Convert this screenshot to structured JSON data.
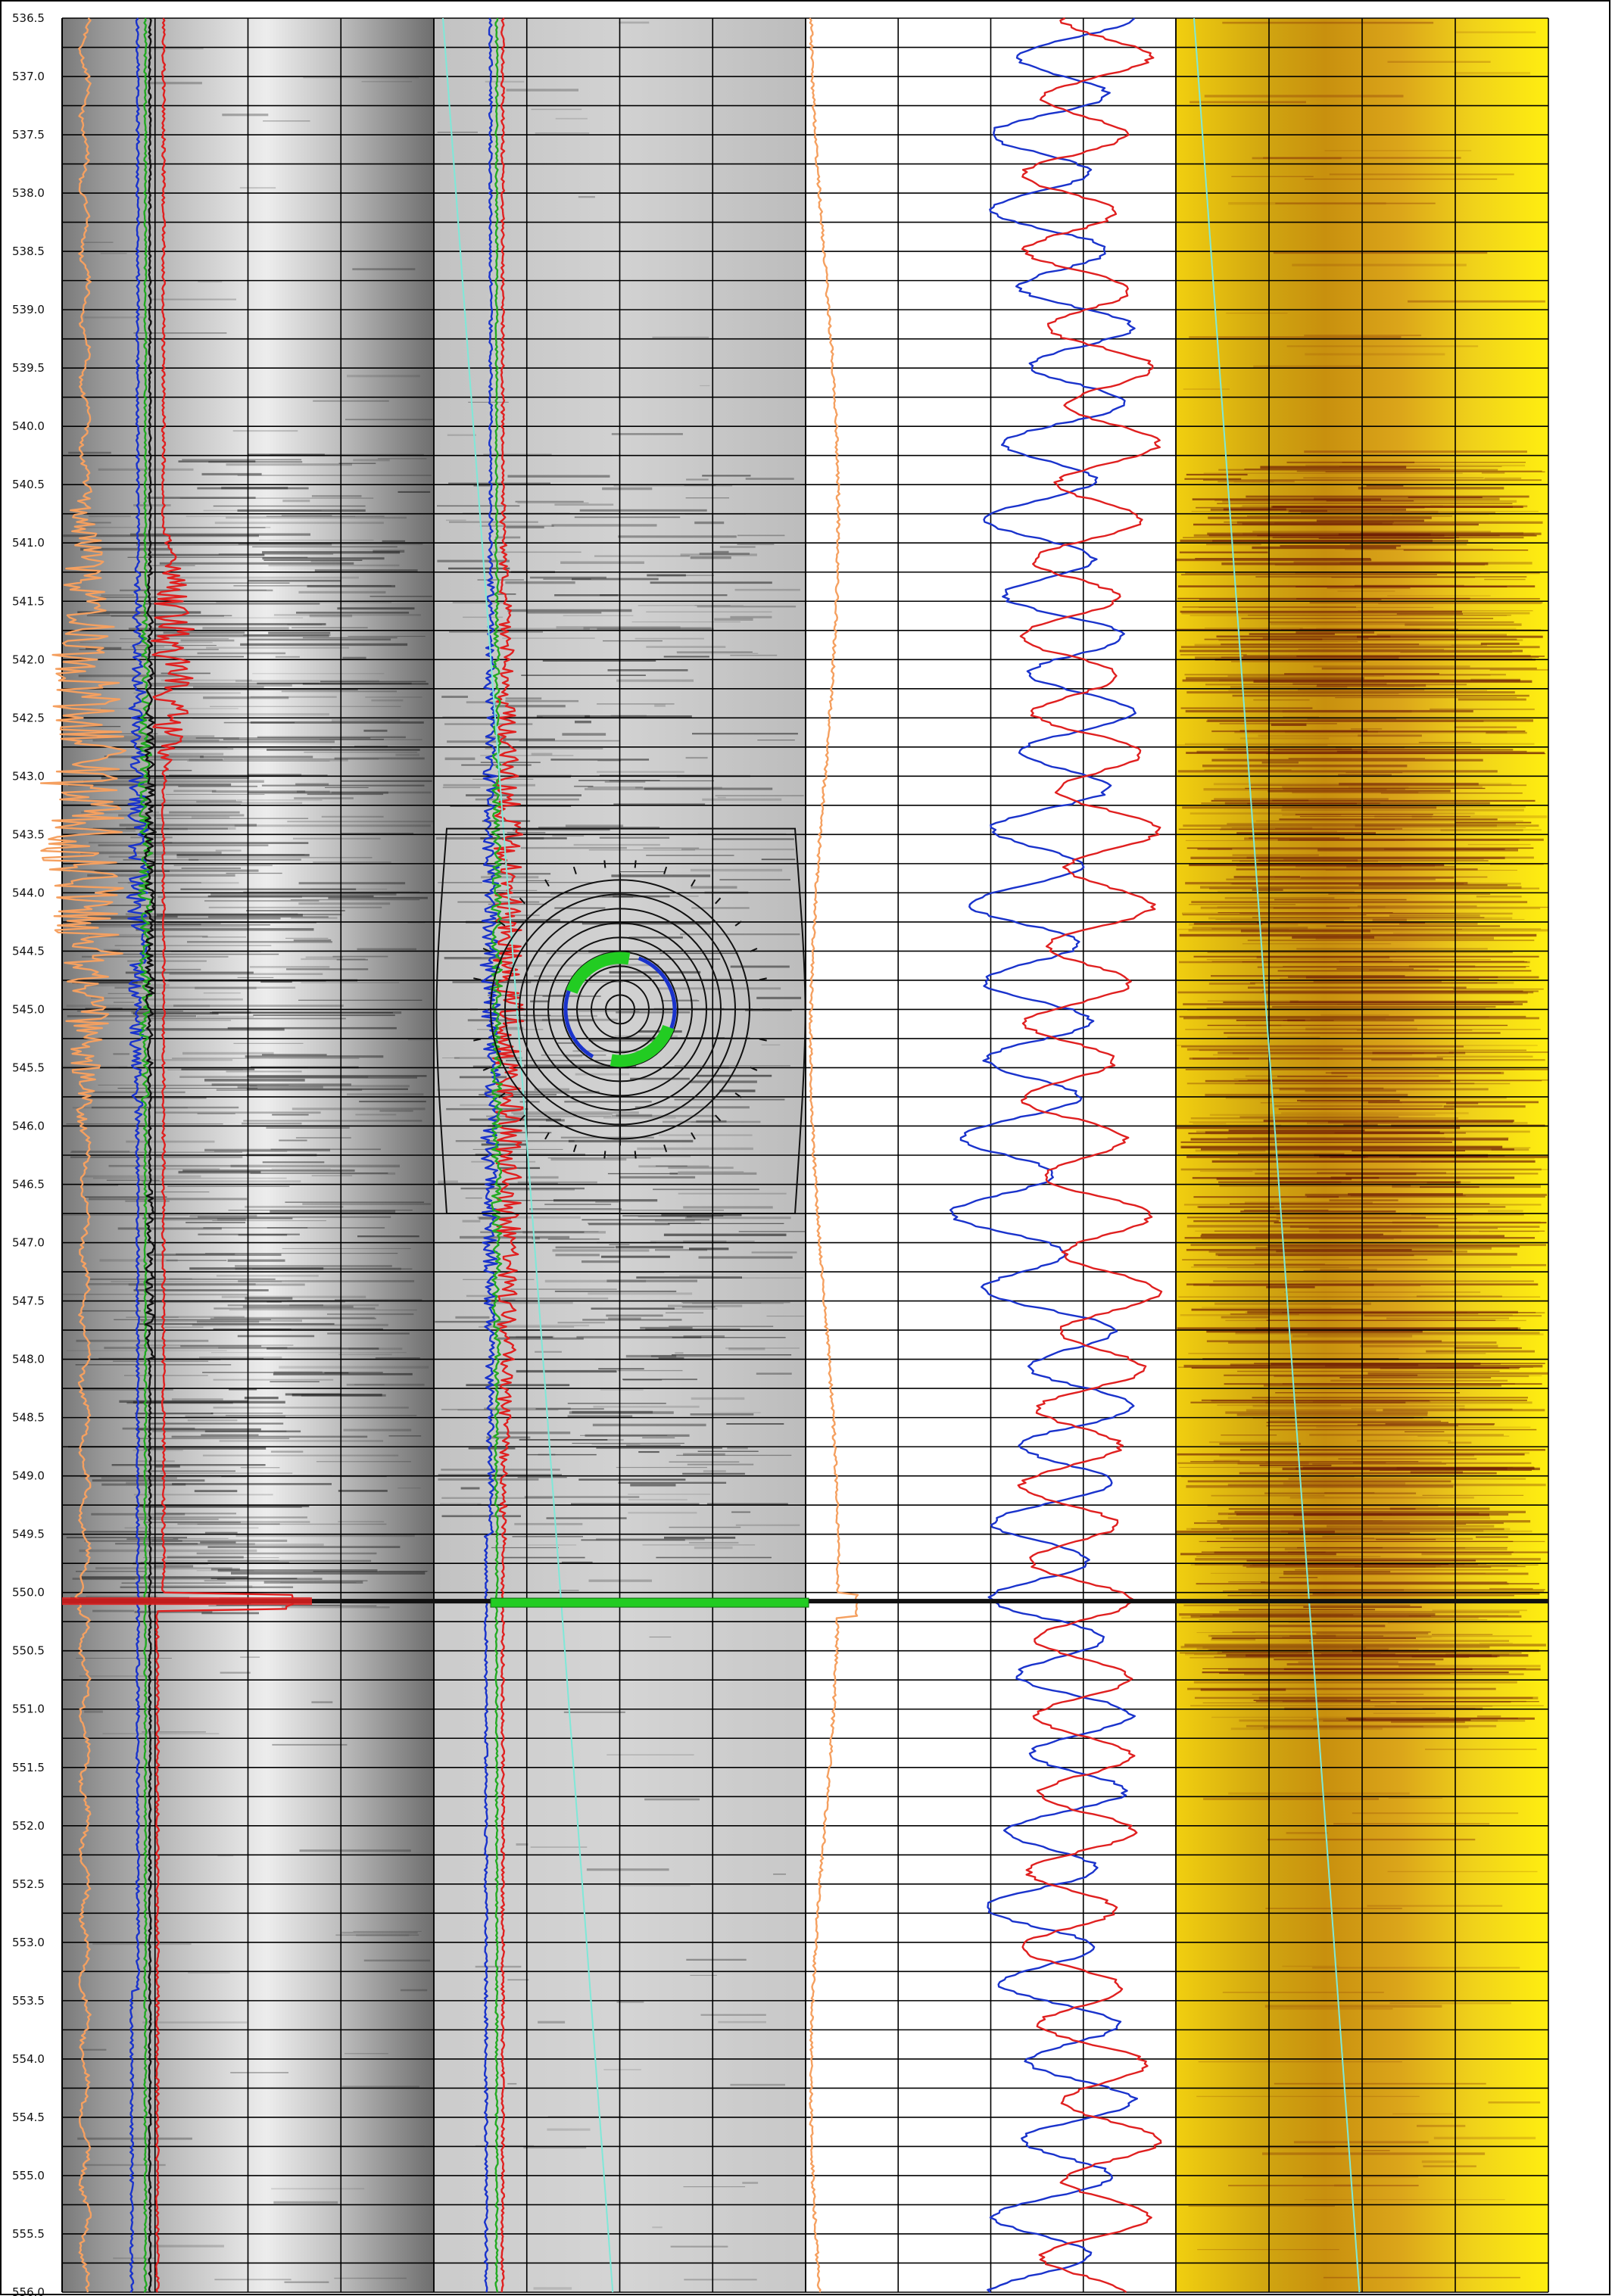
{
  "chart_data": {
    "type": "line",
    "title": "",
    "xlabel": "",
    "ylabel": "",
    "depth_axis": {
      "start": 536.5,
      "end": 556.0,
      "label_step": 0.5,
      "minor_step": 0.25,
      "labels": [
        "536.5",
        "537.0",
        "537.5",
        "538.0",
        "538.5",
        "539.0",
        "539.5",
        "540.0",
        "540.5",
        "541.0",
        "541.5",
        "542.0",
        "542.5",
        "543.0",
        "543.5",
        "544.0",
        "544.5",
        "545.0",
        "545.5",
        "546.0",
        "546.5",
        "547.0",
        "547.5",
        "548.0",
        "548.5",
        "549.0",
        "549.5",
        "550.0",
        "550.5",
        "551.0",
        "551.5",
        "552.0",
        "552.5",
        "553.0",
        "553.5",
        "554.0",
        "554.5",
        "555.0",
        "555.5",
        "556.0"
      ]
    },
    "tracks": [
      {
        "id": "track-1",
        "background": "grayscale acoustic image with bright band",
        "vertical_gridlines": 4
      },
      {
        "id": "track-2",
        "background": "grayscale acoustic image",
        "vertical_gridlines": 4
      },
      {
        "id": "track-3",
        "background": "blank grid",
        "vertical_gridlines": 4
      },
      {
        "id": "track-4",
        "background": "yellow amplitude image",
        "vertical_gridlines": 4
      }
    ],
    "series": [
      {
        "track": "track-1",
        "color": "#f5a060",
        "kind": "noisy-oscillation",
        "active_interval": [
          540.3,
          546.2
        ]
      },
      {
        "track": "track-1",
        "color": "#1a33cc",
        "kind": "near-constant"
      },
      {
        "track": "track-1",
        "color": "#22aa22",
        "kind": "near-constant"
      },
      {
        "track": "track-1",
        "color": "#111111",
        "kind": "near-constant"
      },
      {
        "track": "track-1",
        "color": "#e02020",
        "kind": "spiky",
        "active_interval": [
          540.8,
          543.0
        ]
      },
      {
        "track": "track-2",
        "color": "#1a33cc",
        "kind": "near-constant"
      },
      {
        "track": "track-2",
        "color": "#e02020",
        "kind": "spiky"
      },
      {
        "track": "track-2",
        "color": "#22aa22",
        "kind": "near-constant"
      },
      {
        "track": "track-2",
        "color": "#7fe8d8",
        "kind": "linear-drift"
      },
      {
        "track": "track-3",
        "color": "#f5a060",
        "kind": "near-constant"
      },
      {
        "track": "track-3",
        "color": "#1a33cc",
        "kind": "sinusoidal"
      },
      {
        "track": "track-3",
        "color": "#e02020",
        "kind": "sinusoidal"
      },
      {
        "track": "track-4",
        "color": "#7fe8d8",
        "kind": "linear-drift"
      }
    ],
    "event_depth": 550.1,
    "event_color": "#22cc22",
    "polar_inset": {
      "center_depth": 545.0,
      "ring_count": 9,
      "arc_colors": [
        "#22cc22",
        "#1a33cc"
      ]
    },
    "legend": "none",
    "grid": true
  }
}
